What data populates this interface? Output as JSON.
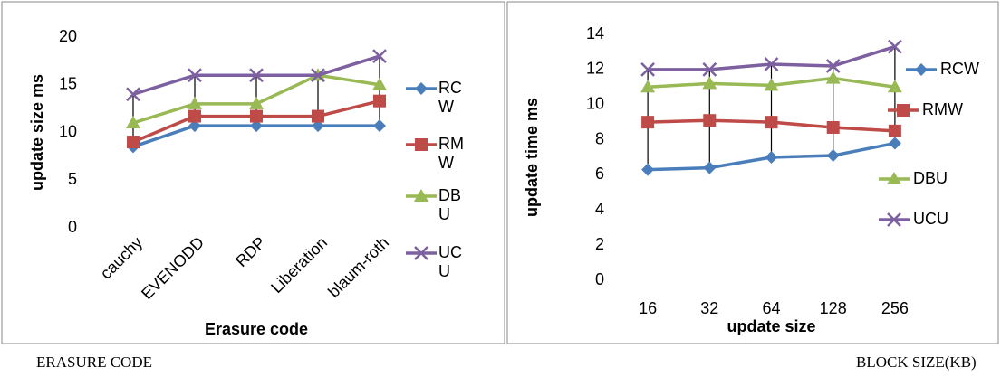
{
  "chart_data": [
    {
      "type": "line",
      "x_label": "Erasure code",
      "y_label": "update size ms",
      "categories": [
        "cauchy",
        "EVENODD",
        "RDP",
        "Liberation",
        "blaum-roth"
      ],
      "ylim": [
        0,
        20
      ],
      "yticks": [
        0,
        5,
        10,
        15,
        20
      ],
      "grid": false,
      "hi_lo_lines": true,
      "series": [
        {
          "name": "RCW",
          "color": "#4a7ebb",
          "marker": "diamond",
          "values": [
            8.5,
            10.7,
            10.7,
            10.7,
            10.7
          ]
        },
        {
          "name": "RMW",
          "color": "#be4b48",
          "marker": "square",
          "values": [
            9,
            11.7,
            11.7,
            11.7,
            13.3
          ]
        },
        {
          "name": "DBU",
          "color": "#98b954",
          "marker": "triangle",
          "values": [
            11,
            13,
            13,
            16,
            15
          ]
        },
        {
          "name": "UCU",
          "color": "#7d60a0",
          "marker": "x",
          "values": [
            14,
            16,
            16,
            16,
            18
          ]
        }
      ]
    },
    {
      "type": "line",
      "x_label": "update size",
      "y_label": "update time ms",
      "categories": [
        "16",
        "32",
        "64",
        "128",
        "256"
      ],
      "ylim": [
        0,
        14
      ],
      "yticks": [
        0,
        2,
        4,
        6,
        8,
        10,
        12,
        14
      ],
      "grid": false,
      "hi_lo_lines": true,
      "series": [
        {
          "name": "RCW",
          "color": "#4a7ebb",
          "marker": "diamond",
          "values": [
            6.3,
            6.4,
            7.0,
            7.1,
            7.8
          ]
        },
        {
          "name": "RMW",
          "color": "#be4b48",
          "marker": "square",
          "values": [
            9.0,
            9.1,
            9.0,
            8.7,
            8.5
          ]
        },
        {
          "name": "DBU",
          "color": "#98b954",
          "marker": "triangle",
          "values": [
            11,
            11.2,
            11.1,
            11.5,
            11
          ]
        },
        {
          "name": "UCU",
          "color": "#7d60a0",
          "marker": "x",
          "values": [
            12,
            12,
            12.3,
            12.2,
            13.3
          ]
        }
      ]
    }
  ],
  "captions": [
    "ERASURE CODE",
    "BLOCK SIZE(KB)"
  ]
}
